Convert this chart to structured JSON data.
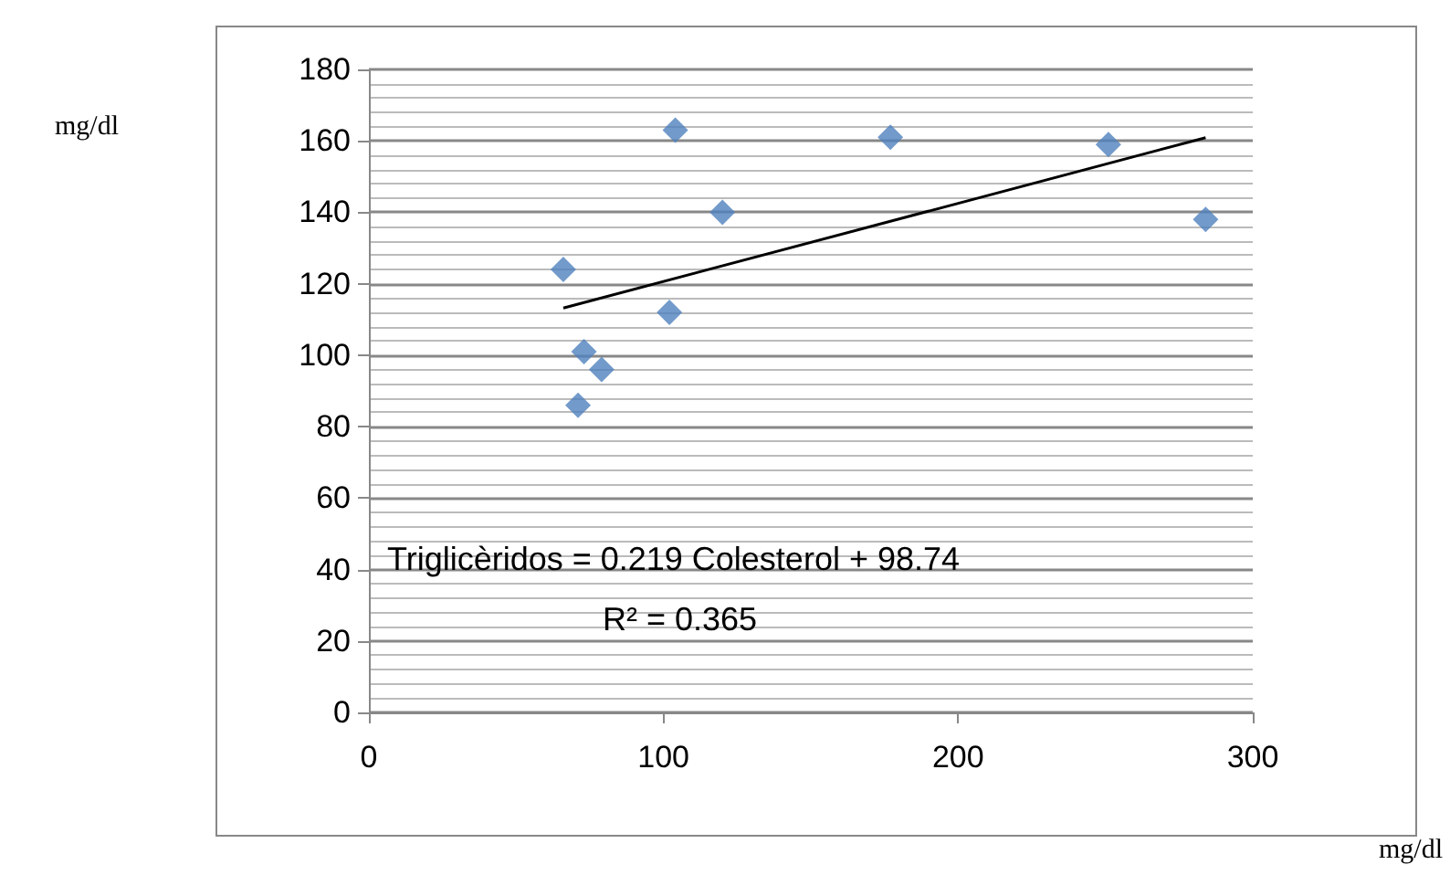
{
  "chart_data": {
    "type": "scatter",
    "annotations": [
      "mg/dl",
      "mg/dl",
      "Triglicèridos = 0.219 Colesterol + 98.74",
      "R² = 0.365"
    ],
    "xlim": [
      0,
      300
    ],
    "xticks": [
      0,
      100,
      200,
      300
    ],
    "ylim": [
      0,
      180
    ],
    "yticks": [
      0,
      20,
      40,
      60,
      80,
      100,
      120,
      140,
      160,
      180
    ],
    "grid": "y",
    "series": [
      {
        "color": "#4f81bd",
        "marker": "diamond",
        "x": [
          66,
          104,
          177,
          251,
          284,
          120,
          102,
          73,
          79,
          71
        ],
        "values": [
          124,
          163,
          161,
          159,
          138,
          140,
          112,
          101,
          96,
          86
        ]
      },
      {
        "type": "line",
        "color": "#000000",
        "marker": "none",
        "x": [
          66,
          284
        ],
        "values": [
          113.2,
          160.9
        ]
      }
    ]
  }
}
